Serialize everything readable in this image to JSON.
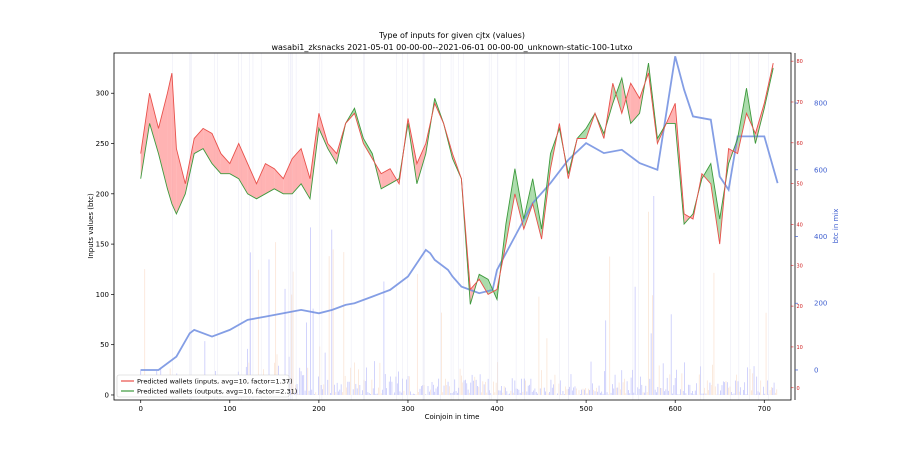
{
  "chart_data": {
    "type": "line",
    "title": "Type of inputs for given cjtx (values)",
    "subtitle": "wasabi1_zksnacks 2021-05-01 00-00-00--2021-06-01 00-00-00_unknown-static-100-1utxo",
    "xlabel": "Coinjoin in time",
    "ylabel": "Inputs values (btc)",
    "y2label": "btc in mix",
    "xlim": [
      -30,
      730
    ],
    "ylim": [
      -5,
      340
    ],
    "y2lim": [
      -90,
      950
    ],
    "y3lim": [
      -3,
      82
    ],
    "x_ticks": [
      "0",
      "100",
      "200",
      "300",
      "400",
      "500",
      "600",
      "700"
    ],
    "y_ticks": [
      "0",
      "50",
      "100",
      "150",
      "200",
      "250",
      "300"
    ],
    "y2_ticks": [
      "0",
      "200",
      "400",
      "600",
      "800"
    ],
    "y3_ticks": [
      "0",
      "10",
      "20",
      "30",
      "40",
      "50",
      "60",
      "70",
      "80"
    ],
    "legend_position": "lower-left",
    "colors": {
      "inputs_line": "#e8504a",
      "inputs_fill": "#ff9a9a",
      "outputs_line": "#3d9a3d",
      "outputs_fill": "#8fd08f",
      "btc_in_mix": "#6f8de0",
      "bars_blue": "#8a8ef7",
      "bars_orange": "#f5c8a8",
      "right_axis_red": "#d02020",
      "right_axis_blue": "#4060d0"
    },
    "series": [
      {
        "name": "Predicted wallets (inputs, avg=10, factor=1.37)",
        "x": [
          0,
          10,
          20,
          30,
          35,
          40,
          50,
          60,
          70,
          80,
          90,
          100,
          110,
          120,
          130,
          140,
          150,
          160,
          170,
          180,
          190,
          200,
          210,
          220,
          230,
          240,
          250,
          260,
          270,
          280,
          290,
          300,
          310,
          320,
          330,
          340,
          350,
          360,
          370,
          380,
          390,
          400,
          410,
          420,
          430,
          440,
          450,
          460,
          470,
          480,
          490,
          500,
          510,
          520,
          530,
          540,
          550,
          560,
          570,
          580,
          590,
          600,
          610,
          620,
          630,
          640,
          650,
          660,
          670,
          680,
          690,
          700,
          710
        ],
        "values": [
          240,
          300,
          265,
          300,
          320,
          245,
          210,
          255,
          265,
          260,
          240,
          230,
          250,
          230,
          210,
          230,
          225,
          215,
          235,
          245,
          215,
          280,
          250,
          240,
          270,
          280,
          250,
          235,
          220,
          225,
          210,
          275,
          230,
          250,
          290,
          270,
          240,
          215,
          105,
          115,
          100,
          105,
          150,
          200,
          165,
          190,
          155,
          225,
          270,
          215,
          255,
          255,
          280,
          255,
          310,
          280,
          310,
          295,
          320,
          250,
          270,
          290,
          180,
          175,
          220,
          210,
          150,
          245,
          240,
          280,
          260,
          290,
          330
        ]
      },
      {
        "name": "Predicted wallets (outputs, avg=10, factor=2.31)",
        "x": [
          0,
          10,
          20,
          30,
          35,
          40,
          50,
          60,
          70,
          80,
          90,
          100,
          110,
          120,
          130,
          140,
          150,
          160,
          170,
          180,
          190,
          200,
          210,
          220,
          230,
          240,
          250,
          260,
          270,
          280,
          290,
          300,
          310,
          320,
          330,
          340,
          350,
          360,
          370,
          380,
          390,
          400,
          410,
          420,
          430,
          440,
          450,
          460,
          470,
          480,
          490,
          500,
          510,
          520,
          530,
          540,
          550,
          560,
          570,
          580,
          590,
          600,
          610,
          620,
          630,
          640,
          650,
          660,
          670,
          680,
          690,
          700,
          710
        ],
        "values": [
          215,
          270,
          240,
          205,
          190,
          180,
          200,
          240,
          245,
          230,
          220,
          220,
          215,
          200,
          195,
          200,
          205,
          200,
          200,
          210,
          195,
          265,
          245,
          230,
          270,
          285,
          255,
          240,
          205,
          210,
          215,
          270,
          210,
          240,
          295,
          270,
          235,
          215,
          90,
          120,
          115,
          95,
          170,
          225,
          175,
          215,
          165,
          240,
          265,
          220,
          255,
          265,
          280,
          260,
          290,
          315,
          270,
          280,
          330,
          255,
          270,
          270,
          170,
          180,
          215,
          230,
          175,
          230,
          255,
          305,
          250,
          285,
          325
        ]
      },
      {
        "name": "btc in mix",
        "axis": "right",
        "x": [
          0,
          20,
          40,
          55,
          60,
          80,
          100,
          120,
          140,
          160,
          180,
          200,
          215,
          230,
          240,
          260,
          280,
          300,
          320,
          325,
          330,
          345,
          350,
          360,
          370,
          380,
          395,
          400,
          420,
          440,
          460,
          480,
          500,
          520,
          540,
          560,
          580,
          600,
          610,
          620,
          640,
          650,
          660,
          670,
          680,
          700,
          715
        ],
        "values": [
          0,
          0,
          40,
          110,
          120,
          100,
          120,
          150,
          160,
          170,
          180,
          170,
          180,
          195,
          200,
          220,
          240,
          280,
          360,
          350,
          330,
          300,
          280,
          250,
          240,
          230,
          240,
          300,
          400,
          500,
          560,
          630,
          680,
          650,
          660,
          620,
          600,
          940,
          840,
          760,
          750,
          580,
          540,
          700,
          700,
          700,
          560
        ]
      }
    ]
  }
}
